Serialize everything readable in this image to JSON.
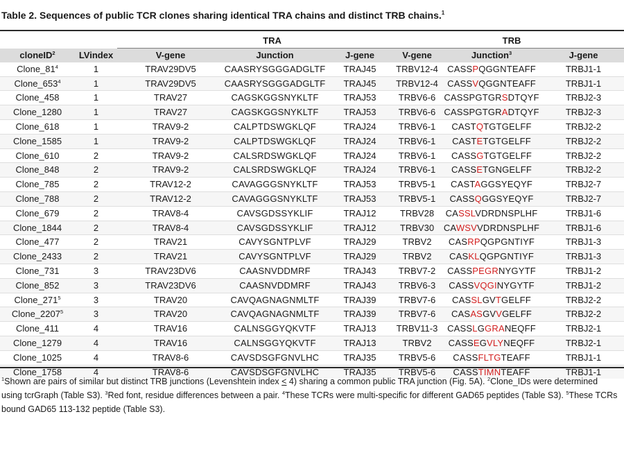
{
  "title": {
    "text": "Table 2. Sequences of public TCR clones sharing identical TRA chains and distinct TRB chains.",
    "mark": "1"
  },
  "groups": {
    "tra": "TRA",
    "trb": "TRB"
  },
  "headers": {
    "clone_id": "cloneID",
    "clone_id_mark": "2",
    "lv_index": "LVindex",
    "tra_v_gene": "V-gene",
    "tra_junction": "Junction",
    "tra_j_gene": "J-gene",
    "trb_v_gene": "V-gene",
    "trb_junction": "Junction",
    "trb_junction_mark": "3",
    "trb_j_gene": "J-gene"
  },
  "rows": [
    {
      "clone": "Clone_81",
      "clone_mark": "4",
      "lv": "1",
      "tra_v": "TRAV29DV5",
      "tra_junction": "CAASRYSGGGADGLTF",
      "tra_j": "TRAJ45",
      "trb_v": "TRBV12-4",
      "trb_junction": [
        {
          "t": "CASS",
          "d": false
        },
        {
          "t": "P",
          "d": true
        },
        {
          "t": "QGGNTEAFF",
          "d": false
        }
      ],
      "trb_j": "TRBJ1-1"
    },
    {
      "clone": "Clone_653",
      "clone_mark": "4",
      "lv": "1",
      "tra_v": "TRAV29DV5",
      "tra_junction": "CAASRYSGGGADGLTF",
      "tra_j": "TRAJ45",
      "trb_v": "TRBV12-4",
      "trb_junction": [
        {
          "t": "CASS",
          "d": false
        },
        {
          "t": "V",
          "d": true
        },
        {
          "t": "QGGNTEAFF",
          "d": false
        }
      ],
      "trb_j": "TRBJ1-1"
    },
    {
      "clone": "Clone_458",
      "clone_mark": "",
      "lv": "1",
      "tra_v": "TRAV27",
      "tra_junction": "CAGSKGGSNYKLTF",
      "tra_j": "TRAJ53",
      "trb_v": "TRBV6-6",
      "trb_junction": [
        {
          "t": "CASSPGTGR",
          "d": false
        },
        {
          "t": "S",
          "d": true
        },
        {
          "t": "DTQYF",
          "d": false
        }
      ],
      "trb_j": "TRBJ2-3"
    },
    {
      "clone": "Clone_1280",
      "clone_mark": "",
      "lv": "1",
      "tra_v": "TRAV27",
      "tra_junction": "CAGSKGGSNYKLTF",
      "tra_j": "TRAJ53",
      "trb_v": "TRBV6-6",
      "trb_junction": [
        {
          "t": "CASSPGTGR",
          "d": false
        },
        {
          "t": "A",
          "d": true
        },
        {
          "t": "DTQYF",
          "d": false
        }
      ],
      "trb_j": "TRBJ2-3"
    },
    {
      "clone": "Clone_618",
      "clone_mark": "",
      "lv": "1",
      "tra_v": "TRAV9-2",
      "tra_junction": "CALPTDSWGKLQF",
      "tra_j": "TRAJ24",
      "trb_v": "TRBV6-1",
      "trb_junction": [
        {
          "t": "CAST",
          "d": false
        },
        {
          "t": "Q",
          "d": true
        },
        {
          "t": "TGTGELFF",
          "d": false
        }
      ],
      "trb_j": "TRBJ2-2"
    },
    {
      "clone": "Clone_1585",
      "clone_mark": "",
      "lv": "1",
      "tra_v": "TRAV9-2",
      "tra_junction": "CALPTDSWGKLQF",
      "tra_j": "TRAJ24",
      "trb_v": "TRBV6-1",
      "trb_junction": [
        {
          "t": "CAST",
          "d": false
        },
        {
          "t": "E",
          "d": true
        },
        {
          "t": "TGTGELFF",
          "d": false
        }
      ],
      "trb_j": "TRBJ2-2"
    },
    {
      "clone": "Clone_610",
      "clone_mark": "",
      "lv": "2",
      "tra_v": "TRAV9-2",
      "tra_junction": "CALSRDSWGKLQF",
      "tra_j": "TRAJ24",
      "trb_v": "TRBV6-1",
      "trb_junction": [
        {
          "t": "CASS",
          "d": false
        },
        {
          "t": "G",
          "d": true
        },
        {
          "t": "TGTGELFF",
          "d": false
        }
      ],
      "trb_j": "TRBJ2-2"
    },
    {
      "clone": "Clone_848",
      "clone_mark": "",
      "lv": "2",
      "tra_v": "TRAV9-2",
      "tra_junction": "CALSRDSWGKLQF",
      "tra_j": "TRAJ24",
      "trb_v": "TRBV6-1",
      "trb_junction": [
        {
          "t": "CASS",
          "d": false
        },
        {
          "t": "E",
          "d": true
        },
        {
          "t": "TGNGELFF",
          "d": false
        }
      ],
      "trb_j": "TRBJ2-2"
    },
    {
      "clone": "Clone_785",
      "clone_mark": "",
      "lv": "2",
      "tra_v": "TRAV12-2",
      "tra_junction": "CAVAGGGSNYKLTF",
      "tra_j": "TRAJ53",
      "trb_v": "TRBV5-1",
      "trb_junction": [
        {
          "t": "CAST",
          "d": false
        },
        {
          "t": "A",
          "d": true
        },
        {
          "t": "GGSYEQYF",
          "d": false
        }
      ],
      "trb_j": "TRBJ2-7"
    },
    {
      "clone": "Clone_788",
      "clone_mark": "",
      "lv": "2",
      "tra_v": "TRAV12-2",
      "tra_junction": "CAVAGGGSNYKLTF",
      "tra_j": "TRAJ53",
      "trb_v": "TRBV5-1",
      "trb_junction": [
        {
          "t": "CASS",
          "d": false
        },
        {
          "t": "Q",
          "d": true
        },
        {
          "t": "GGSYEQYF",
          "d": false
        }
      ],
      "trb_j": "TRBJ2-7"
    },
    {
      "clone": "Clone_679",
      "clone_mark": "",
      "lv": "2",
      "tra_v": "TRAV8-4",
      "tra_junction": "CAVSGDSSYKLIF",
      "tra_j": "TRAJ12",
      "trb_v": "TRBV28",
      "trb_junction": [
        {
          "t": "CA",
          "d": false
        },
        {
          "t": "SSL",
          "d": true
        },
        {
          "t": "VDRDNSPLHF",
          "d": false
        }
      ],
      "trb_j": "TRBJ1-6"
    },
    {
      "clone": "Clone_1844",
      "clone_mark": "",
      "lv": "2",
      "tra_v": "TRAV8-4",
      "tra_junction": "CAVSGDSSYKLIF",
      "tra_j": "TRAJ12",
      "trb_v": "TRBV30",
      "trb_junction": [
        {
          "t": "CA",
          "d": false
        },
        {
          "t": "WSV",
          "d": true
        },
        {
          "t": "VDRDNSPLHF",
          "d": false
        }
      ],
      "trb_j": "TRBJ1-6"
    },
    {
      "clone": "Clone_477",
      "clone_mark": "",
      "lv": "2",
      "tra_v": "TRAV21",
      "tra_junction": "CAVYSGNTPLVF",
      "tra_j": "TRAJ29",
      "trb_v": "TRBV2",
      "trb_junction": [
        {
          "t": "CAS",
          "d": false
        },
        {
          "t": "RP",
          "d": true
        },
        {
          "t": "QGPGNTIYF",
          "d": false
        }
      ],
      "trb_j": "TRBJ1-3"
    },
    {
      "clone": "Clone_2433",
      "clone_mark": "",
      "lv": "2",
      "tra_v": "TRAV21",
      "tra_junction": "CAVYSGNTPLVF",
      "tra_j": "TRAJ29",
      "trb_v": "TRBV2",
      "trb_junction": [
        {
          "t": "CAS",
          "d": false
        },
        {
          "t": "KL",
          "d": true
        },
        {
          "t": "QGPGNTIYF",
          "d": false
        }
      ],
      "trb_j": "TRBJ1-3"
    },
    {
      "clone": "Clone_731",
      "clone_mark": "",
      "lv": "3",
      "tra_v": "TRAV23DV6",
      "tra_junction": "CAASNVDDMRF",
      "tra_j": "TRAJ43",
      "trb_v": "TRBV7-2",
      "trb_junction": [
        {
          "t": "CASS",
          "d": false
        },
        {
          "t": "PEGR",
          "d": true
        },
        {
          "t": "NYGYTF",
          "d": false
        }
      ],
      "trb_j": "TRBJ1-2"
    },
    {
      "clone": "Clone_852",
      "clone_mark": "",
      "lv": "3",
      "tra_v": "TRAV23DV6",
      "tra_junction": "CAASNVDDMRF",
      "tra_j": "TRAJ43",
      "trb_v": "TRBV6-3",
      "trb_junction": [
        {
          "t": "CASS",
          "d": false
        },
        {
          "t": "VQGI",
          "d": true
        },
        {
          "t": "NYGYTF",
          "d": false
        }
      ],
      "trb_j": "TRBJ1-2"
    },
    {
      "clone": "Clone_271",
      "clone_mark": "5",
      "lv": "3",
      "tra_v": "TRAV20",
      "tra_junction": "CAVQAGNAGNMLTF",
      "tra_j": "TRAJ39",
      "trb_v": "TRBV7-6",
      "trb_junction": [
        {
          "t": "CAS",
          "d": false
        },
        {
          "t": "SL",
          "d": true
        },
        {
          "t": "GV",
          "d": false
        },
        {
          "t": "T",
          "d": true
        },
        {
          "t": "GELFF",
          "d": false
        }
      ],
      "trb_j": "TRBJ2-2"
    },
    {
      "clone": "Clone_2207",
      "clone_mark": "5",
      "lv": "3",
      "tra_v": "TRAV20",
      "tra_junction": "CAVQAGNAGNMLTF",
      "tra_j": "TRAJ39",
      "trb_v": "TRBV7-6",
      "trb_junction": [
        {
          "t": "CAS",
          "d": false
        },
        {
          "t": "AS",
          "d": true
        },
        {
          "t": "GV",
          "d": false
        },
        {
          "t": "V",
          "d": true
        },
        {
          "t": "GELFF",
          "d": false
        }
      ],
      "trb_j": "TRBJ2-2"
    },
    {
      "clone": "Clone_411",
      "clone_mark": "",
      "lv": "4",
      "tra_v": "TRAV16",
      "tra_junction": "CALNSGGYQKVTF",
      "tra_j": "TRAJ13",
      "trb_v": "TRBV11-3",
      "trb_junction": [
        {
          "t": "CASS",
          "d": false
        },
        {
          "t": "L",
          "d": true
        },
        {
          "t": "G",
          "d": false
        },
        {
          "t": "GRA",
          "d": true
        },
        {
          "t": "NEQFF",
          "d": false
        }
      ],
      "trb_j": "TRBJ2-1"
    },
    {
      "clone": "Clone_1279",
      "clone_mark": "",
      "lv": "4",
      "tra_v": "TRAV16",
      "tra_junction": "CALNSGGYQKVTF",
      "tra_j": "TRAJ13",
      "trb_v": "TRBV2",
      "trb_junction": [
        {
          "t": "CASS",
          "d": false
        },
        {
          "t": "E",
          "d": true
        },
        {
          "t": "G",
          "d": false
        },
        {
          "t": "VLY",
          "d": true
        },
        {
          "t": "NEQFF",
          "d": false
        }
      ],
      "trb_j": "TRBJ2-1"
    },
    {
      "clone": "Clone_1025",
      "clone_mark": "",
      "lv": "4",
      "tra_v": "TRAV8-6",
      "tra_junction": "CAVSDSGFGNVLHC",
      "tra_j": "TRAJ35",
      "trb_v": "TRBV5-6",
      "trb_junction": [
        {
          "t": "CASS",
          "d": false
        },
        {
          "t": "FLTG",
          "d": true
        },
        {
          "t": "TEAFF",
          "d": false
        }
      ],
      "trb_j": "TRBJ1-1"
    },
    {
      "clone": "Clone_1758",
      "clone_mark": "",
      "lv": "4",
      "tra_v": "TRAV8-6",
      "tra_junction": "CAVSDSGFGNVLHC",
      "tra_j": "TRAJ35",
      "trb_v": "TRBV5-6",
      "trb_junction": [
        {
          "t": "CASS",
          "d": false
        },
        {
          "t": "TIMN",
          "d": true
        },
        {
          "t": "TEAFF",
          "d": false
        }
      ],
      "trb_j": "TRBJ1-1"
    }
  ],
  "colors": {
    "diff": "#d31f1f",
    "header_band": "#dcdcdc"
  },
  "footnotes": {
    "n1_mark": "1",
    "n1_pre": "Shown are pairs of similar but distinct TRB junctions (Levenshtein index ",
    "n1_le": "<",
    "n1_post": " 4) sharing a common public TRA junction (Fig. 5A). ",
    "n2_mark": "2",
    "n2": "Clone_IDs were determined using tcrGraph (Table S3). ",
    "n3_mark": "3",
    "n3": "Red font, residue differences between a pair. ",
    "n4_mark": "4",
    "n4": "These TCRs were multi-specific for different GAD65 peptides (Table S3). ",
    "n5_mark": "5",
    "n5": "These TCRs bound GAD65 113-132 peptide (Table S3)."
  }
}
